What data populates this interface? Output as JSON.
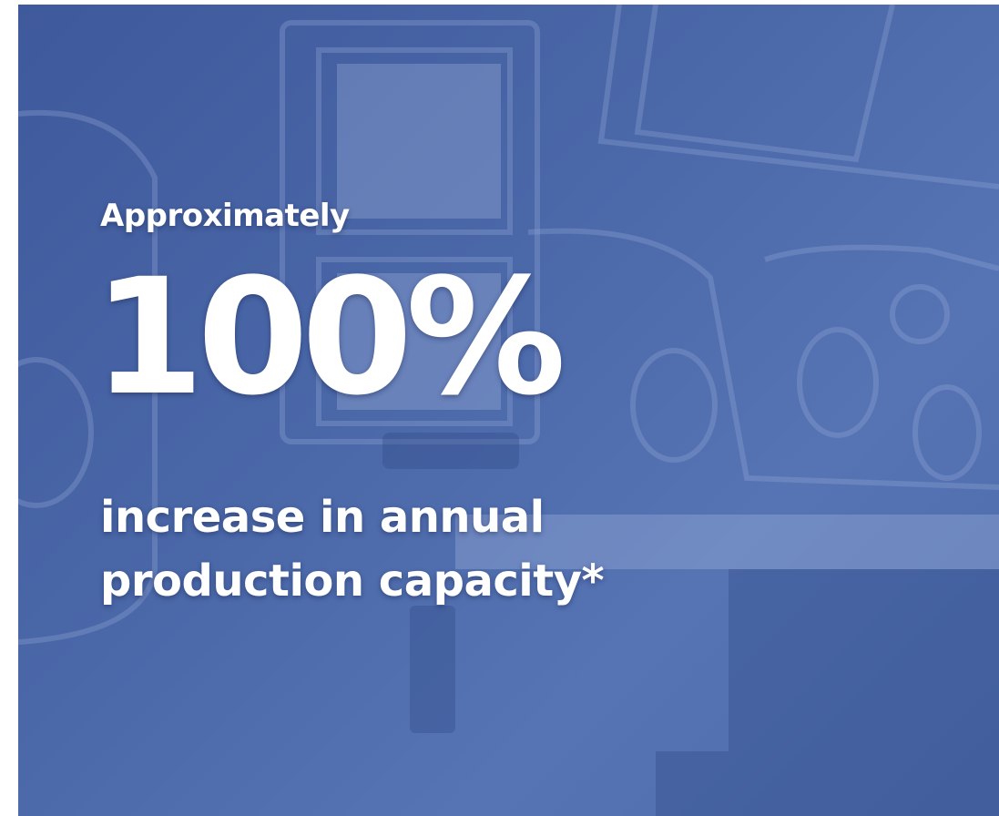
{
  "eyebrow": "Approximately",
  "headline": "100%",
  "body_lines": [
    "increase in annual",
    "production capacity*"
  ]
}
